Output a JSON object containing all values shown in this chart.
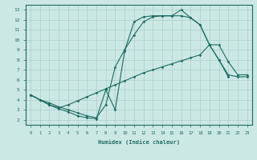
{
  "xlabel": "Humidex (Indice chaleur)",
  "background_color": "#cce8e5",
  "grid_color": "#aacfcc",
  "line_color": "#1a6b62",
  "xlim": [
    -0.5,
    23.5
  ],
  "ylim": [
    1.5,
    13.5
  ],
  "xticks": [
    0,
    1,
    2,
    3,
    4,
    5,
    6,
    7,
    8,
    9,
    10,
    11,
    12,
    13,
    14,
    15,
    16,
    17,
    18,
    19,
    20,
    21,
    22,
    23
  ],
  "yticks": [
    2,
    3,
    4,
    5,
    6,
    7,
    8,
    9,
    10,
    11,
    12,
    13
  ],
  "line1_x": [
    0,
    1,
    2,
    3,
    4,
    5,
    6,
    7,
    8,
    9,
    10,
    11,
    12,
    13,
    14,
    15,
    16,
    17,
    18,
    19,
    20,
    21
  ],
  "line1_y": [
    4.5,
    4.0,
    3.5,
    3.1,
    2.8,
    2.4,
    2.2,
    2.1,
    5.0,
    3.0,
    8.9,
    11.8,
    12.3,
    12.4,
    12.4,
    12.4,
    13.0,
    12.2,
    11.5,
    9.5,
    8.0,
    6.3
  ],
  "line2_x": [
    0,
    1,
    2,
    3,
    4,
    5,
    6,
    7,
    8,
    9,
    10,
    11,
    12,
    13,
    14,
    15,
    16,
    17,
    18,
    19,
    20,
    21,
    22,
    23
  ],
  "line2_y": [
    4.5,
    4.0,
    3.5,
    3.2,
    3.5,
    3.9,
    4.3,
    4.7,
    5.1,
    5.5,
    5.9,
    6.3,
    6.7,
    7.0,
    7.3,
    7.6,
    7.9,
    8.2,
    8.5,
    9.5,
    9.5,
    7.8,
    6.5,
    6.5
  ],
  "line3_x": [
    0,
    1,
    2,
    3,
    4,
    5,
    6,
    7,
    8,
    9,
    10,
    11,
    12,
    13,
    14,
    15,
    16,
    17,
    18,
    19,
    20,
    21,
    22,
    23
  ],
  "line3_y": [
    4.5,
    4.0,
    3.7,
    3.3,
    3.0,
    2.7,
    2.4,
    2.2,
    3.5,
    7.3,
    9.0,
    10.5,
    11.8,
    12.3,
    12.4,
    12.4,
    12.4,
    12.2,
    11.5,
    9.5,
    8.0,
    6.5,
    6.3,
    6.3
  ]
}
